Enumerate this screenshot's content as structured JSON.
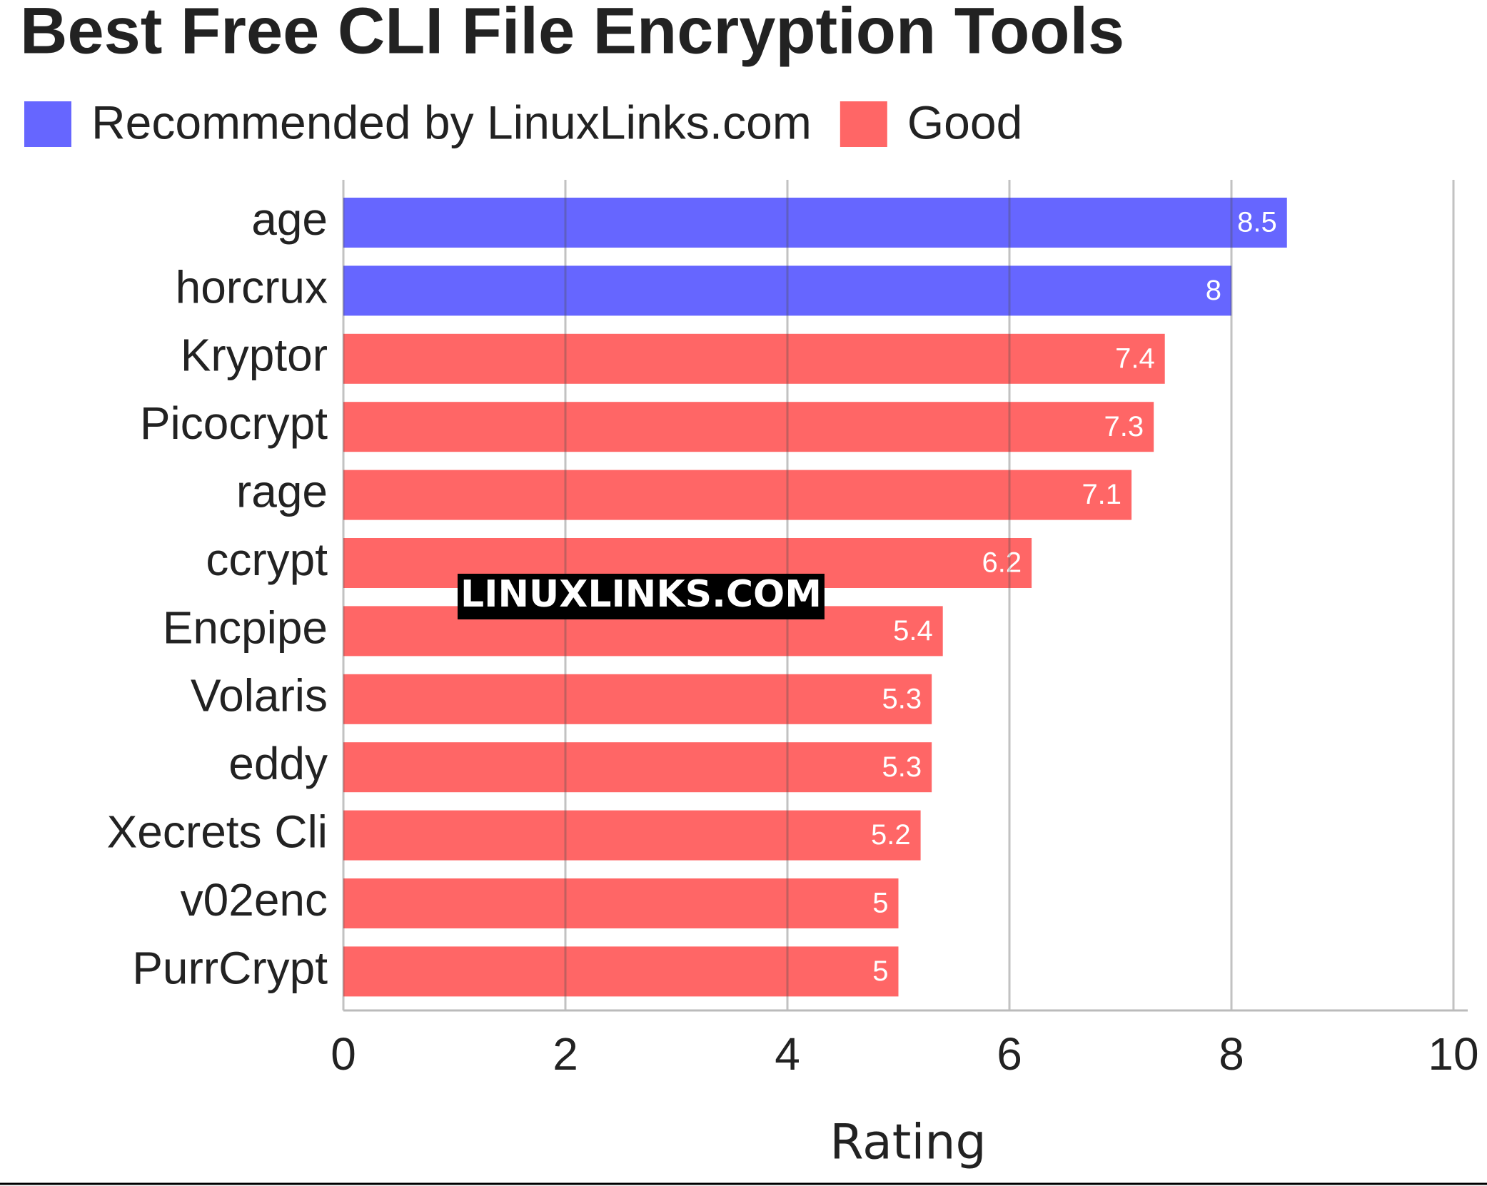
{
  "chart_data": {
    "type": "bar",
    "orientation": "horizontal",
    "title": "Best Free CLI File Encryption Tools",
    "x_label": "Rating",
    "watermark": "LINUXLINKS.COM",
    "categories": [
      "age",
      "horcrux",
      "Kryptor",
      "Picocrypt",
      "rage",
      "ccrypt",
      "Encpipe",
      "Volaris",
      "eddy",
      "Xecrets Cli",
      "v02enc",
      "PurrCrypt"
    ],
    "series": [
      {
        "name": "Recommended by LinuxLinks.com",
        "color": "#6666ff",
        "values": [
          8.5,
          8,
          null,
          null,
          null,
          null,
          null,
          null,
          null,
          null,
          null,
          null
        ]
      },
      {
        "name": "Good",
        "color": "#ff6666",
        "values": [
          null,
          null,
          7.4,
          7.3,
          7.1,
          6.2,
          5.4,
          5.3,
          5.3,
          5.2,
          5,
          5
        ]
      }
    ],
    "xlim": [
      0,
      10
    ],
    "xticks": [
      0,
      2,
      4,
      6,
      8,
      10
    ],
    "grid": true,
    "legend": "top-left"
  }
}
